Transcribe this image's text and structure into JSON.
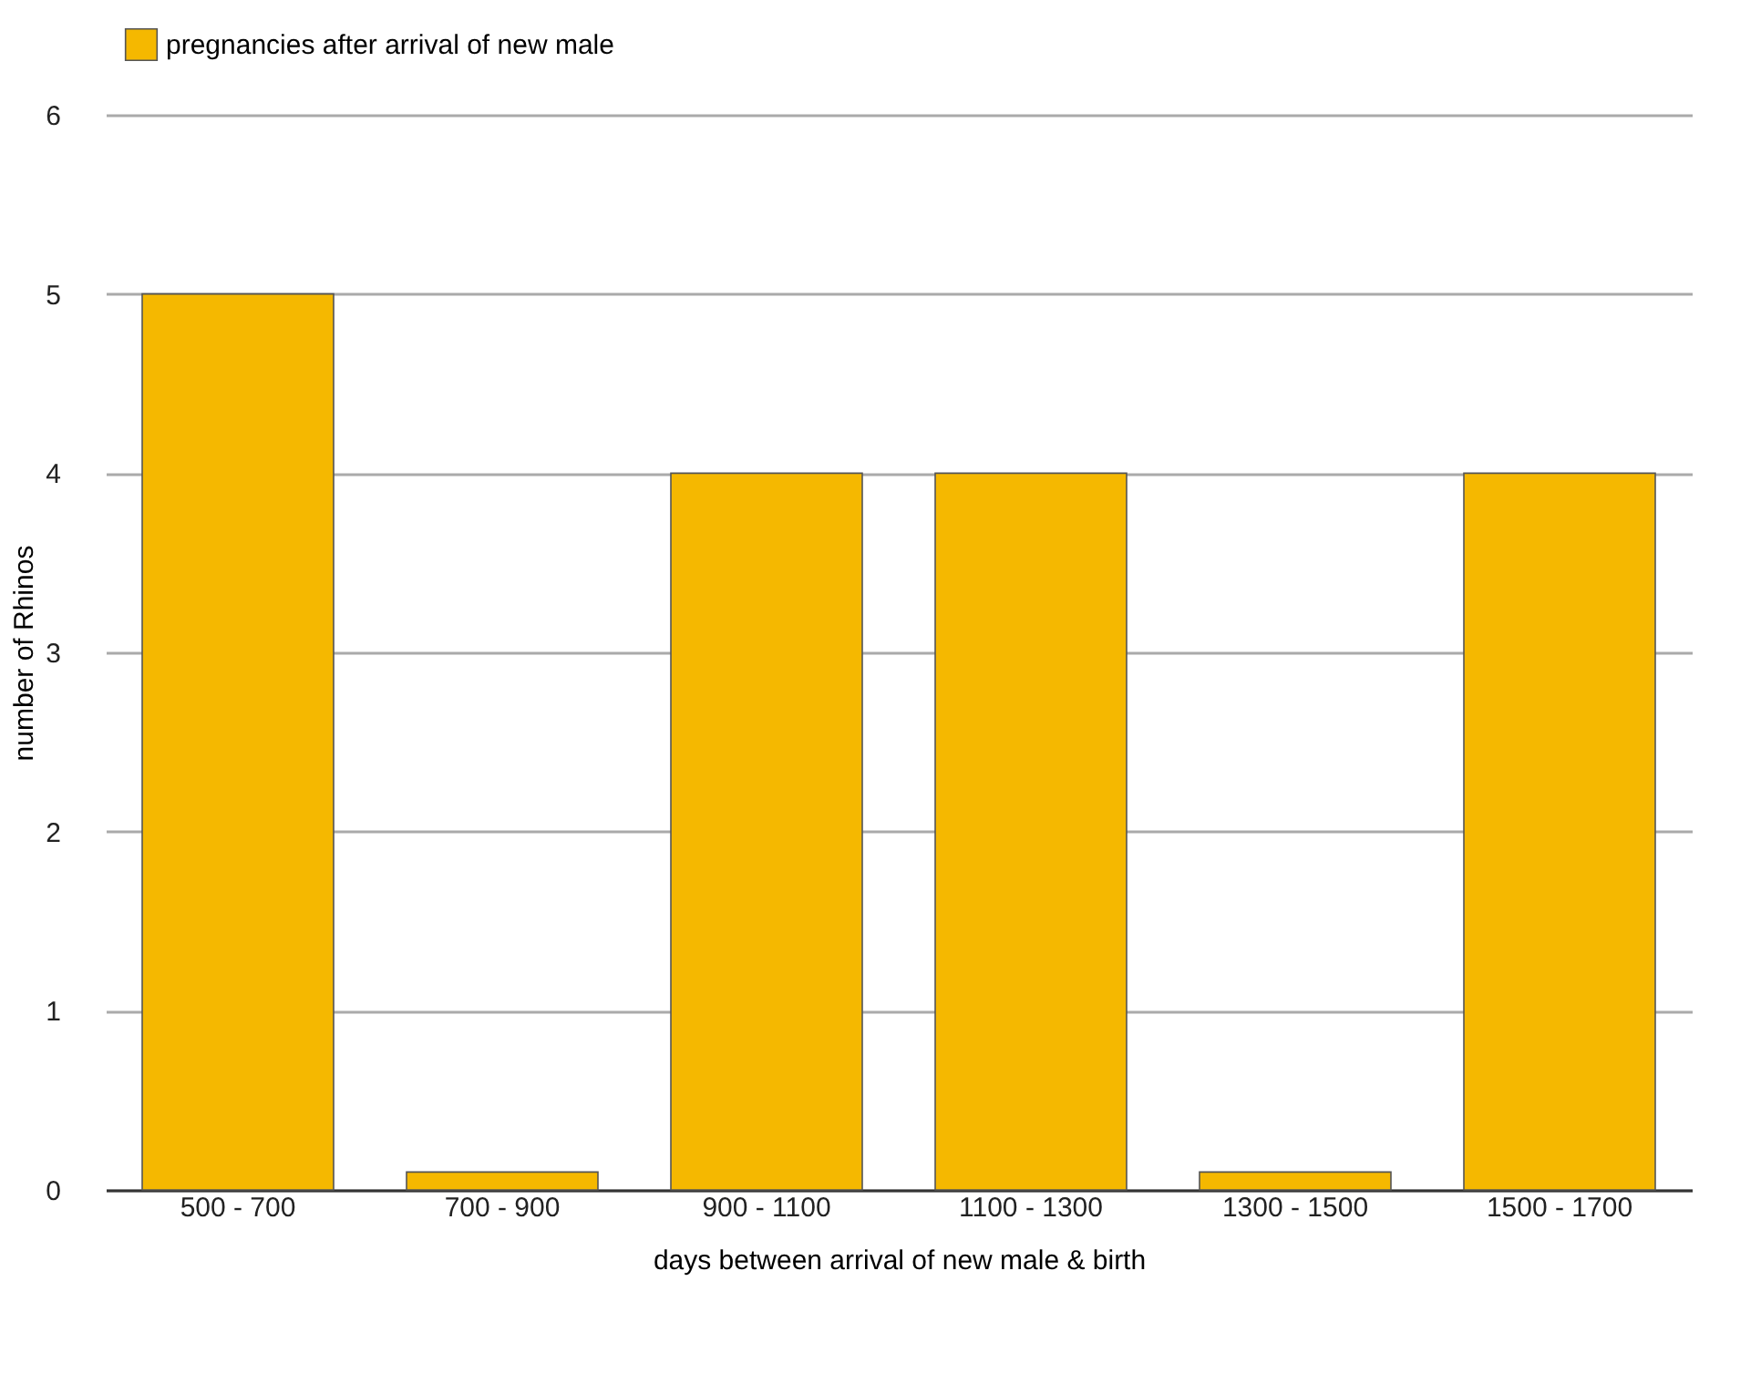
{
  "chart_data": {
    "type": "bar",
    "categories": [
      "500 - 700",
      "700 - 900",
      "900 - 1100",
      "1100 - 1300",
      "1300 - 1500",
      "1500 - 1700"
    ],
    "series": [
      {
        "name": "pregnancies after arrival of new male",
        "color": "#f5b800",
        "values": [
          5,
          0.1,
          4,
          4,
          0.1,
          4
        ]
      }
    ],
    "xlabel": "days between arrival of new male & birth",
    "ylabel": "number of Rhinos",
    "ylim": [
      0,
      6
    ],
    "yticks": [
      0,
      1,
      2,
      3,
      4,
      5,
      6
    ],
    "grid": "y",
    "legend": "top"
  }
}
